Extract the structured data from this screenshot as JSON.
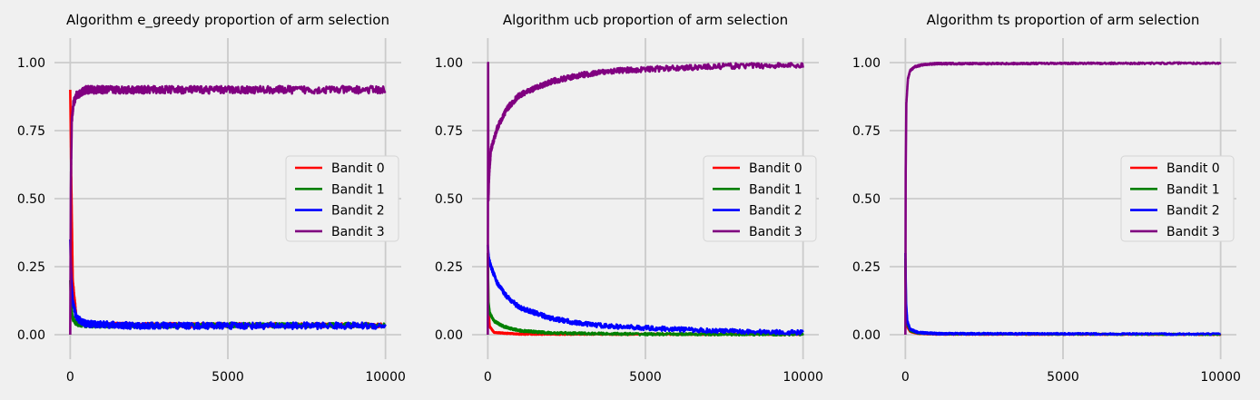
{
  "chart_data": [
    {
      "type": "line",
      "title": "Algorithm e_greedy proportion of arm selection",
      "xlabel": "",
      "ylabel": "",
      "xlim": [
        -500,
        10500
      ],
      "ylim": [
        -0.09,
        1.09
      ],
      "xticks": [
        "0",
        "5000",
        "10000"
      ],
      "yticks": [
        "0.00",
        "0.25",
        "0.50",
        "0.75",
        "1.00"
      ],
      "grid": true,
      "legend_position": "center-right",
      "series": [
        {
          "name": "Bandit 0",
          "color": "#ff0000",
          "points": [
            [
              0,
              0.9
            ],
            [
              30,
              0.6
            ],
            [
              80,
              0.2
            ],
            [
              200,
              0.06
            ],
            [
              500,
              0.04
            ],
            [
              2000,
              0.035
            ],
            [
              5000,
              0.035
            ],
            [
              10000,
              0.035
            ]
          ],
          "noise": 0.008
        },
        {
          "name": "Bandit 1",
          "color": "#008000",
          "points": [
            [
              0,
              0.2
            ],
            [
              30,
              0.1
            ],
            [
              80,
              0.06
            ],
            [
              200,
              0.04
            ],
            [
              500,
              0.035
            ],
            [
              2000,
              0.033
            ],
            [
              5000,
              0.035
            ],
            [
              10000,
              0.035
            ]
          ],
          "noise": 0.008
        },
        {
          "name": "Bandit 2",
          "color": "#0000ff",
          "points": [
            [
              0,
              0.35
            ],
            [
              30,
              0.2
            ],
            [
              80,
              0.12
            ],
            [
              200,
              0.06
            ],
            [
              500,
              0.04
            ],
            [
              2000,
              0.033
            ],
            [
              5000,
              0.033
            ],
            [
              10000,
              0.033
            ]
          ],
          "noise": 0.012
        },
        {
          "name": "Bandit 3",
          "color": "#800080",
          "points": [
            [
              0,
              0.0
            ],
            [
              20,
              0.55
            ],
            [
              50,
              0.78
            ],
            [
              100,
              0.85
            ],
            [
              200,
              0.88
            ],
            [
              500,
              0.9
            ],
            [
              2000,
              0.9
            ],
            [
              5000,
              0.9
            ],
            [
              10000,
              0.9
            ]
          ],
          "noise": 0.014
        }
      ]
    },
    {
      "type": "line",
      "title": "Algorithm ucb proportion of arm selection",
      "xlabel": "",
      "ylabel": "",
      "xlim": [
        -500,
        10500
      ],
      "ylim": [
        -0.09,
        1.09
      ],
      "xticks": [
        "0",
        "5000",
        "10000"
      ],
      "yticks": [
        "0.00",
        "0.25",
        "0.50",
        "0.75",
        "1.00"
      ],
      "grid": true,
      "legend_position": "center-right",
      "series": [
        {
          "name": "Bandit 0",
          "color": "#ff0000",
          "points": [
            [
              0,
              0.3
            ],
            [
              20,
              0.1
            ],
            [
              60,
              0.03
            ],
            [
              200,
              0.008
            ],
            [
              1000,
              0.002
            ],
            [
              10000,
              0.001
            ]
          ],
          "noise": 0.002
        },
        {
          "name": "Bandit 1",
          "color": "#008000",
          "points": [
            [
              0,
              0.3
            ],
            [
              20,
              0.12
            ],
            [
              60,
              0.08
            ],
            [
              200,
              0.05
            ],
            [
              500,
              0.03
            ],
            [
              1000,
              0.015
            ],
            [
              2000,
              0.006
            ],
            [
              5000,
              0.002
            ],
            [
              10000,
              0.001
            ]
          ],
          "noise": 0.004
        },
        {
          "name": "Bandit 2",
          "color": "#0000ff",
          "points": [
            [
              0,
              0.33
            ],
            [
              30,
              0.28
            ],
            [
              100,
              0.25
            ],
            [
              300,
              0.19
            ],
            [
              600,
              0.14
            ],
            [
              1000,
              0.1
            ],
            [
              2000,
              0.06
            ],
            [
              3000,
              0.04
            ],
            [
              4000,
              0.03
            ],
            [
              5000,
              0.025
            ],
            [
              6000,
              0.02
            ],
            [
              7000,
              0.015
            ],
            [
              8000,
              0.012
            ],
            [
              10000,
              0.008
            ]
          ],
          "noise": 0.008
        },
        {
          "name": "Bandit 3",
          "color": "#800080",
          "points": [
            [
              0,
              0.0
            ],
            [
              10,
              1.0
            ],
            [
              20,
              0.5
            ],
            [
              40,
              0.58
            ],
            [
              100,
              0.68
            ],
            [
              300,
              0.76
            ],
            [
              600,
              0.83
            ],
            [
              1000,
              0.88
            ],
            [
              2000,
              0.93
            ],
            [
              3000,
              0.955
            ],
            [
              4000,
              0.97
            ],
            [
              5000,
              0.975
            ],
            [
              6000,
              0.98
            ],
            [
              7000,
              0.985
            ],
            [
              8000,
              0.988
            ],
            [
              10000,
              0.99
            ]
          ],
          "noise": 0.01
        }
      ]
    },
    {
      "type": "line",
      "title": "Algorithm ts proportion of arm selection",
      "xlabel": "",
      "ylabel": "",
      "xlim": [
        -500,
        10500
      ],
      "ylim": [
        -0.09,
        1.09
      ],
      "xticks": [
        "0",
        "5000",
        "10000"
      ],
      "yticks": [
        "0.00",
        "0.25",
        "0.50",
        "0.75",
        "1.00"
      ],
      "grid": true,
      "legend_position": "center-right",
      "series": [
        {
          "name": "Bandit 0",
          "color": "#ff0000",
          "points": [
            [
              0,
              0.25
            ],
            [
              20,
              0.08
            ],
            [
              60,
              0.03
            ],
            [
              150,
              0.012
            ],
            [
              400,
              0.005
            ],
            [
              1000,
              0.002
            ],
            [
              10000,
              0.001
            ]
          ],
          "noise": 0.002
        },
        {
          "name": "Bandit 1",
          "color": "#008000",
          "points": [
            [
              0,
              0.28
            ],
            [
              20,
              0.1
            ],
            [
              60,
              0.04
            ],
            [
              150,
              0.015
            ],
            [
              400,
              0.006
            ],
            [
              1000,
              0.003
            ],
            [
              10000,
              0.001
            ]
          ],
          "noise": 0.002
        },
        {
          "name": "Bandit 2",
          "color": "#0000ff",
          "points": [
            [
              0,
              0.3
            ],
            [
              20,
              0.12
            ],
            [
              60,
              0.05
            ],
            [
              150,
              0.02
            ],
            [
              400,
              0.008
            ],
            [
              1000,
              0.004
            ],
            [
              10000,
              0.002
            ]
          ],
          "noise": 0.003
        },
        {
          "name": "Bandit 3",
          "color": "#800080",
          "points": [
            [
              0,
              0.0
            ],
            [
              10,
              0.6
            ],
            [
              30,
              0.85
            ],
            [
              80,
              0.94
            ],
            [
              150,
              0.97
            ],
            [
              300,
              0.985
            ],
            [
              600,
              0.993
            ],
            [
              1000,
              0.996
            ],
            [
              10000,
              0.998
            ]
          ],
          "noise": 0.003
        }
      ]
    }
  ]
}
